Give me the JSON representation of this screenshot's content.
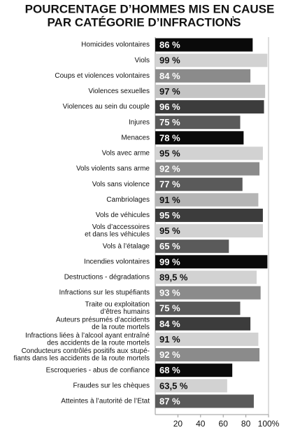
{
  "chart_data": {
    "type": "barh",
    "title": [
      "POURCENTAGE D’HOMMES MIS EN CAUSE",
      "PAR CATÉGORIE D’INFRACTIONS"
    ],
    "title_note": "1",
    "categories": [
      [
        "Homicides volontaires"
      ],
      [
        "Viols"
      ],
      [
        "Coups et violences volontaires"
      ],
      [
        "Violences sexuelles"
      ],
      [
        "Violences au sein du couple"
      ],
      [
        "Injures"
      ],
      [
        "Menaces"
      ],
      [
        "Vols avec arme"
      ],
      [
        "Vols violents sans arme"
      ],
      [
        "Vols sans violence"
      ],
      [
        "Cambriolages"
      ],
      [
        "Vols de véhicules"
      ],
      [
        "Vols d’accessoires",
        "et dans les véhicules"
      ],
      [
        "Vols à l’étalage"
      ],
      [
        "Incendies volontaires"
      ],
      [
        "Destructions - dégradations"
      ],
      [
        "Infractions sur les stupéfiants"
      ],
      [
        "Traite ou exploitation",
        "d’êtres humains"
      ],
      [
        "Auteurs présumés d’accidents",
        "de la route mortels"
      ],
      [
        "Infractions liées à l’alcool ayant entraîné",
        "des accidents de la route mortels"
      ],
      [
        "Conducteurs contrôlés positifs aux stupé-",
        "fiants dans les accidents de la route mortels"
      ],
      [
        "Escroqueries - abus de confiance"
      ],
      [
        "Fraudes sur les chèques"
      ],
      [
        "Atteintes à l’autorité de l’Etat"
      ]
    ],
    "values": [
      86,
      99,
      84,
      97,
      96,
      75,
      78,
      95,
      92,
      77,
      91,
      95,
      95,
      65,
      99,
      89.5,
      93,
      75,
      84,
      91,
      92,
      68,
      63.5,
      87
    ],
    "value_labels": [
      "86 %",
      "99 %",
      "84 %",
      "97 %",
      "96 %",
      "75 %",
      "78 %",
      "95 %",
      "92 %",
      "77 %",
      "91 %",
      "95 %",
      "95 %",
      "65 %",
      "99 %",
      "89,5 %",
      "93 %",
      "75 %",
      "84 %",
      "91 %",
      "92 %",
      "68 %",
      "63,5 %",
      "87 %"
    ],
    "colors": [
      "#0a0a0a",
      "#d2d2d2",
      "#8b8b8b",
      "#c4c4c4",
      "#3c3c3c",
      "#5a5a5a",
      "#0a0a0a",
      "#d2d2d2",
      "#8b8b8b",
      "#5a5a5a",
      "#b5b5b5",
      "#3c3c3c",
      "#d2d2d2",
      "#5a5a5a",
      "#0a0a0a",
      "#d2d2d2",
      "#8b8b8b",
      "#5a5a5a",
      "#3c3c3c",
      "#d2d2d2",
      "#8b8b8b",
      "#0a0a0a",
      "#d2d2d2",
      "#5a5a5a"
    ],
    "xlim": [
      0,
      100
    ],
    "xticks": [
      20,
      40,
      60,
      80,
      {
        "value": 100,
        "label": "100%"
      }
    ]
  }
}
